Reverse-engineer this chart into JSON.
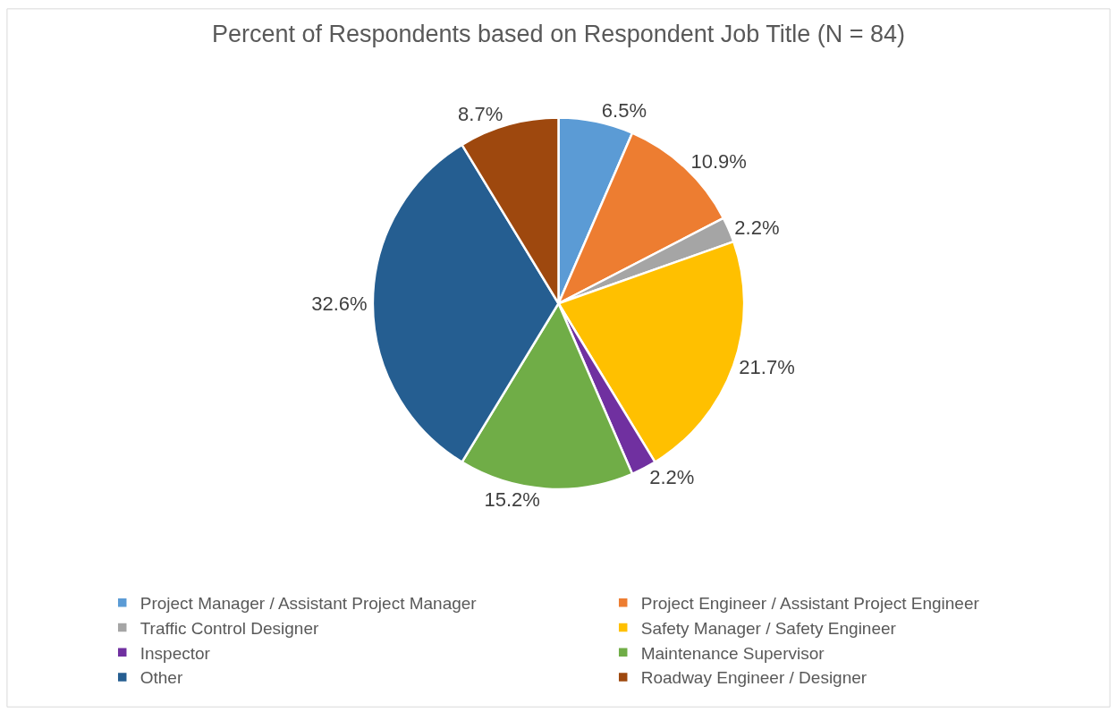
{
  "chart_data": {
    "type": "pie",
    "title": "Percent of Respondents based on Respondent Job Title (N = 84)",
    "categories": [
      "Project Manager / Assistant Project Manager",
      "Project Engineer / Assistant Project Engineer",
      "Traffic Control Designer",
      "Safety Manager / Safety Engineer",
      "Inspector",
      "Maintenance Supervisor",
      "Other",
      "Roadway Engineer / Designer"
    ],
    "values": [
      6.5,
      10.9,
      2.2,
      21.7,
      2.2,
      15.2,
      32.6,
      8.7
    ],
    "value_labels": [
      "6.5%",
      "10.9%",
      "2.2%",
      "21.7%",
      "2.2%",
      "15.2%",
      "32.6%",
      "8.7%"
    ],
    "colors": [
      "#5b9bd5",
      "#ed7d31",
      "#a5a5a5",
      "#ffc000",
      "#7030a0",
      "#70ad47",
      "#255e91",
      "#9e480e"
    ],
    "legend": "bottom"
  }
}
